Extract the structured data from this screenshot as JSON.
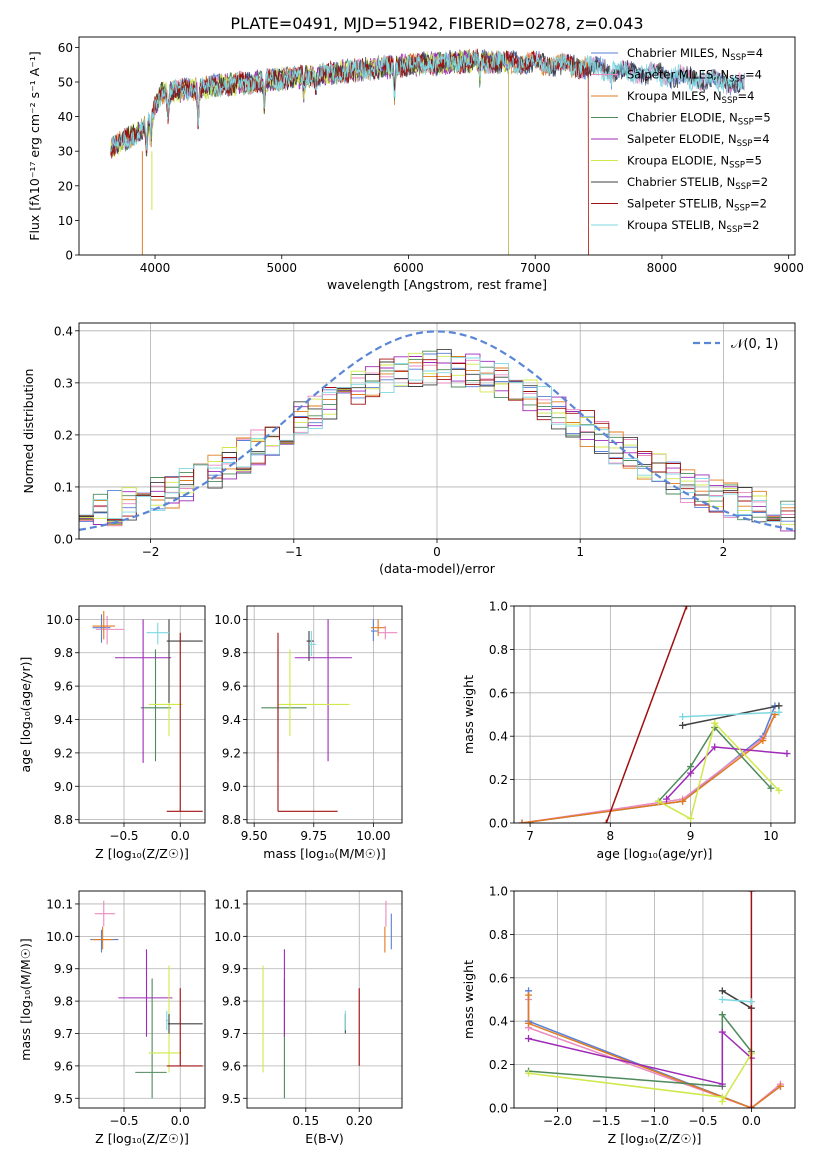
{
  "figure": {
    "title": "PLATE=0491, MJD=51942, FIBERID=0278, z=0.043"
  },
  "colors": {
    "chabrier_miles": "#5a7fd6",
    "salpeter_miles": "#e98ac0",
    "kroupa_miles": "#e07b1f",
    "chabrier_elodie": "#4f8a5b",
    "salpeter_elodie": "#9e2ab8",
    "kroupa_elodie": "#d0e84a",
    "chabrier_stelib": "#404040",
    "salpeter_stelib": "#a01010",
    "kroupa_stelib": "#7fd8e0"
  },
  "chart_data": [
    {
      "id": "spectrum",
      "type": "line",
      "xlabel": "wavelength [Angstrom, rest frame]",
      "ylabel": "Flux [fλ10⁻¹⁷ erg cm⁻² s⁻¹ A⁻¹]",
      "xlim": [
        3400,
        9050
      ],
      "ylim": [
        0,
        63
      ],
      "xticks": [
        4000,
        5000,
        6000,
        7000,
        8000,
        9000
      ],
      "yticks": [
        0,
        10,
        20,
        30,
        40,
        50,
        60
      ],
      "legend": "upper-right",
      "continuum": {
        "x": [
          3650,
          3800,
          3950,
          4050,
          4300,
          4500,
          4800,
          5000,
          5500,
          6000,
          6500,
          7000,
          7500,
          8000,
          8500,
          8650
        ],
        "y": [
          31,
          34,
          38,
          47,
          48,
          49,
          50,
          51,
          53,
          55,
          56,
          55.5,
          54,
          52,
          50,
          49
        ]
      },
      "series": [
        {
          "name": "Chabrier MILES, N_SSP=4",
          "color_key": "chabrier_miles",
          "end": 8650
        },
        {
          "name": "Salpeter MILES, N_SSP=4",
          "color_key": "salpeter_miles",
          "end": 8650
        },
        {
          "name": "Kroupa MILES, N_SSP=4",
          "color_key": "kroupa_miles",
          "end": 7420
        },
        {
          "name": "Chabrier ELODIE, N_SSP=5",
          "color_key": "chabrier_elodie",
          "end": 6790
        },
        {
          "name": "Salpeter ELODIE, N_SSP=4",
          "color_key": "salpeter_elodie",
          "end": 6790
        },
        {
          "name": "Kroupa ELODIE, N_SSP=5",
          "color_key": "kroupa_elodie",
          "end": 6790
        },
        {
          "name": "Chabrier STELIB, N_SSP=2",
          "color_key": "chabrier_stelib",
          "end": 8650
        },
        {
          "name": "Salpeter STELIB, N_SSP=2",
          "color_key": "salpeter_stelib",
          "end": 7420
        },
        {
          "name": "Kroupa STELIB, N_SSP=2",
          "color_key": "kroupa_stelib",
          "end": 8650
        }
      ]
    },
    {
      "id": "residuals",
      "type": "histogram",
      "xlabel": "(data-model)/error",
      "ylabel": "Normed distribution",
      "xlim": [
        -2.5,
        2.5
      ],
      "ylim": [
        0,
        0.415
      ],
      "xticks": [
        -2,
        -1,
        0,
        1,
        2
      ],
      "yticks": [
        0.0,
        0.1,
        0.2,
        0.3,
        0.4
      ],
      "legend": "upper-right",
      "gaussian": {
        "label": "𝒩(0, 1)",
        "color": "#5a86d6"
      },
      "bin_width": 0.1,
      "series_order": [
        "chabrier_miles",
        "salpeter_miles",
        "kroupa_miles",
        "chabrier_elodie",
        "salpeter_elodie",
        "kroupa_elodie",
        "chabrier_stelib",
        "salpeter_stelib",
        "kroupa_stelib"
      ]
    },
    {
      "id": "age_vs_z",
      "type": "errorbar",
      "xlabel": "Z [log₁₀(Z/Z☉)]",
      "ylabel": "age  [log₁₀(age/yr)]",
      "xlim": [
        -0.9,
        0.22
      ],
      "ylim": [
        8.78,
        10.08
      ],
      "xticks": [
        -0.5,
        0.0
      ],
      "yticks": [
        8.8,
        9.0,
        9.2,
        9.4,
        9.6,
        9.8,
        10.0
      ],
      "points": [
        {
          "k": "chabrier_miles",
          "x": -0.7,
          "xe": [
            -0.78,
            -0.62
          ],
          "y": 9.95,
          "ye": [
            9.86,
            10.03
          ]
        },
        {
          "k": "salpeter_miles",
          "x": -0.65,
          "xe": [
            -0.75,
            -0.5
          ],
          "y": 9.94,
          "ye": [
            9.85,
            10.02
          ]
        },
        {
          "k": "kroupa_miles",
          "x": -0.68,
          "xe": [
            -0.78,
            -0.58
          ],
          "y": 9.96,
          "ye": [
            9.88,
            10.05
          ]
        },
        {
          "k": "chabrier_elodie",
          "x": -0.22,
          "xe": [
            -0.35,
            -0.08
          ],
          "y": 9.47,
          "ye": [
            9.15,
            9.82
          ]
        },
        {
          "k": "salpeter_elodie",
          "x": -0.33,
          "xe": [
            -0.58,
            -0.08
          ],
          "y": 9.77,
          "ye": [
            9.14,
            10.0
          ]
        },
        {
          "k": "kroupa_elodie",
          "x": -0.1,
          "xe": [
            -0.28,
            0.02
          ],
          "y": 9.49,
          "ye": [
            9.3,
            9.82
          ]
        },
        {
          "k": "chabrier_stelib",
          "x": -0.1,
          "xe": [
            -0.12,
            0.2
          ],
          "y": 9.87,
          "ye": [
            9.5,
            10.0
          ]
        },
        {
          "k": "salpeter_stelib",
          "x": 0.0,
          "xe": [
            -0.12,
            0.2
          ],
          "y": 8.85,
          "ye": [
            8.85,
            9.92
          ]
        },
        {
          "k": "kroupa_stelib",
          "x": -0.2,
          "xe": [
            -0.3,
            -0.1
          ],
          "y": 9.92,
          "ye": [
            9.85,
            9.98
          ]
        }
      ]
    },
    {
      "id": "age_vs_mass",
      "type": "errorbar",
      "xlabel": "mass [log₁₀(M/M☉)]",
      "ylabel": "",
      "xlim": [
        9.47,
        10.12
      ],
      "ylim": [
        8.78,
        10.08
      ],
      "xticks": [
        9.5,
        9.75,
        10.0
      ],
      "yticks": [
        8.8,
        9.0,
        9.2,
        9.4,
        9.6,
        9.8,
        10.0
      ],
      "points": [
        {
          "k": "chabrier_miles",
          "x": 10.0,
          "xe": [
            9.99,
            10.02
          ],
          "y": 9.93,
          "ye": [
            9.87,
            10.0
          ]
        },
        {
          "k": "salpeter_miles",
          "x": 10.05,
          "xe": [
            10.02,
            10.1
          ],
          "y": 9.92,
          "ye": [
            9.88,
            9.96
          ]
        },
        {
          "k": "kroupa_miles",
          "x": 10.02,
          "xe": [
            9.99,
            10.05
          ],
          "y": 9.95,
          "ye": [
            9.9,
            10.0
          ]
        },
        {
          "k": "chabrier_elodie",
          "x": 9.6,
          "xe": [
            9.53,
            9.72
          ],
          "y": 9.47,
          "ye": [
            9.15,
            9.82
          ]
        },
        {
          "k": "salpeter_elodie",
          "x": 9.81,
          "xe": [
            9.67,
            9.91
          ],
          "y": 9.77,
          "ye": [
            9.15,
            10.0
          ]
        },
        {
          "k": "kroupa_elodie",
          "x": 9.65,
          "xe": [
            9.6,
            9.9
          ],
          "y": 9.49,
          "ye": [
            9.3,
            9.82
          ]
        },
        {
          "k": "chabrier_stelib",
          "x": 9.73,
          "xe": [
            9.72,
            9.75
          ],
          "y": 9.87,
          "ye": [
            9.75,
            9.93
          ]
        },
        {
          "k": "salpeter_stelib",
          "x": 9.6,
          "xe": [
            9.6,
            9.85
          ],
          "y": 8.85,
          "ye": [
            8.85,
            9.92
          ]
        },
        {
          "k": "kroupa_stelib",
          "x": 9.74,
          "xe": [
            9.73,
            9.76
          ],
          "y": 9.85,
          "ye": [
            9.78,
            9.93
          ]
        }
      ]
    },
    {
      "id": "weight_vs_age",
      "type": "line",
      "xlabel": "age  [log₁₀(age/yr)]",
      "ylabel": "mass weight",
      "xlim": [
        6.8,
        10.3
      ],
      "ylim": [
        0,
        1.0
      ],
      "xticks": [
        7,
        8,
        9,
        10
      ],
      "yticks": [
        0.0,
        0.2,
        0.4,
        0.6,
        0.8,
        1.0
      ],
      "series": [
        {
          "k": "chabrier_miles",
          "x": [
            6.9,
            8.9,
            9.9,
            10.05
          ],
          "y": [
            0.0,
            0.1,
            0.4,
            0.54
          ]
        },
        {
          "k": "salpeter_miles",
          "x": [
            6.9,
            8.9,
            9.9,
            10.05
          ],
          "y": [
            0.0,
            0.11,
            0.39,
            0.5
          ]
        },
        {
          "k": "kroupa_miles",
          "x": [
            6.9,
            8.9,
            9.9,
            10.05
          ],
          "y": [
            0.0,
            0.1,
            0.38,
            0.5
          ]
        },
        {
          "k": "chabrier_elodie",
          "x": [
            8.6,
            9.0,
            9.3,
            10.0
          ],
          "y": [
            0.1,
            0.26,
            0.44,
            0.16
          ]
        },
        {
          "k": "salpeter_elodie",
          "x": [
            8.7,
            9.0,
            9.3,
            10.2
          ],
          "y": [
            0.11,
            0.23,
            0.35,
            0.32
          ]
        },
        {
          "k": "kroupa_elodie",
          "x": [
            8.6,
            9.0,
            9.3,
            10.1
          ],
          "y": [
            0.1,
            0.02,
            0.46,
            0.15
          ]
        },
        {
          "k": "chabrier_stelib",
          "x": [
            8.9,
            10.1
          ],
          "y": [
            0.45,
            0.54
          ]
        },
        {
          "k": "salpeter_stelib",
          "x": [
            7.95,
            8.95
          ],
          "y": [
            0.0,
            1.0
          ]
        },
        {
          "k": "kroupa_stelib",
          "x": [
            8.9,
            10.1
          ],
          "y": [
            0.49,
            0.51
          ]
        }
      ]
    },
    {
      "id": "mass_vs_z",
      "type": "errorbar",
      "xlabel": "Z [log₁₀(Z/Z☉)]",
      "ylabel": "mass [log₁₀(M/M☉)]",
      "xlim": [
        -0.9,
        0.22
      ],
      "ylim": [
        9.47,
        10.14
      ],
      "xticks": [
        -0.5,
        0.0
      ],
      "yticks": [
        9.5,
        9.6,
        9.7,
        9.8,
        9.9,
        10.0,
        10.1
      ],
      "points": [
        {
          "k": "chabrier_miles",
          "x": -0.7,
          "xe": [
            -0.8,
            -0.55
          ],
          "y": 9.99,
          "ye": [
            9.95,
            10.02
          ]
        },
        {
          "k": "salpeter_miles",
          "x": -0.68,
          "xe": [
            -0.76,
            -0.58
          ],
          "y": 10.07,
          "ye": [
            10.03,
            10.11
          ]
        },
        {
          "k": "kroupa_miles",
          "x": -0.69,
          "xe": [
            -0.78,
            -0.6
          ],
          "y": 9.99,
          "ye": [
            9.96,
            10.03
          ]
        },
        {
          "k": "chabrier_elodie",
          "x": -0.25,
          "xe": [
            -0.4,
            -0.12
          ],
          "y": 9.58,
          "ye": [
            9.5,
            9.87
          ]
        },
        {
          "k": "salpeter_elodie",
          "x": -0.3,
          "xe": [
            -0.55,
            -0.07
          ],
          "y": 9.81,
          "ye": [
            9.69,
            9.96
          ]
        },
        {
          "k": "kroupa_elodie",
          "x": -0.1,
          "xe": [
            -0.28,
            0.01
          ],
          "y": 9.64,
          "ye": [
            9.58,
            9.91
          ]
        },
        {
          "k": "chabrier_stelib",
          "x": -0.1,
          "xe": [
            -0.11,
            0.2
          ],
          "y": 9.73,
          "ye": [
            9.7,
            9.76
          ]
        },
        {
          "k": "salpeter_stelib",
          "x": 0.0,
          "xe": [
            -0.12,
            0.2
          ],
          "y": 9.6,
          "ye": [
            9.6,
            9.84
          ]
        },
        {
          "k": "kroupa_stelib",
          "x": -0.12,
          "xe": [
            -0.13,
            -0.11
          ],
          "y": 9.74,
          "ye": [
            9.71,
            9.77
          ]
        }
      ]
    },
    {
      "id": "mass_vs_ebv",
      "type": "errorbar",
      "xlabel": "E(B-V)",
      "ylabel": "",
      "xlim": [
        0.095,
        0.24
      ],
      "ylim": [
        9.47,
        10.14
      ],
      "xticks": [
        0.15,
        0.2
      ],
      "yticks": [
        9.5,
        9.6,
        9.7,
        9.8,
        9.9,
        10.0,
        10.1
      ],
      "points": [
        {
          "k": "chabrier_miles",
          "x": 0.23,
          "y": 10.02,
          "ye": [
            9.96,
            10.07
          ]
        },
        {
          "k": "salpeter_miles",
          "x": 0.225,
          "y": 10.07,
          "ye": [
            10.03,
            10.11
          ]
        },
        {
          "k": "kroupa_miles",
          "x": 0.224,
          "y": 9.99,
          "ye": [
            9.95,
            10.03
          ]
        },
        {
          "k": "chabrier_elodie",
          "x": 0.13,
          "y": 9.58,
          "ye": [
            9.5,
            9.87
          ]
        },
        {
          "k": "salpeter_elodie",
          "x": 0.13,
          "y": 9.81,
          "ye": [
            9.69,
            9.96
          ]
        },
        {
          "k": "kroupa_elodie",
          "x": 0.11,
          "y": 9.64,
          "ye": [
            9.58,
            9.91
          ]
        },
        {
          "k": "chabrier_stelib",
          "x": 0.187,
          "y": 9.73,
          "ye": [
            9.7,
            9.76
          ]
        },
        {
          "k": "salpeter_stelib",
          "x": 0.2,
          "y": 9.6,
          "ye": [
            9.6,
            9.84
          ]
        },
        {
          "k": "kroupa_stelib",
          "x": 0.187,
          "y": 9.74,
          "ye": [
            9.71,
            9.77
          ]
        }
      ]
    },
    {
      "id": "weight_vs_z",
      "type": "line",
      "xlabel": "Z [log₁₀(Z/Z☉)]",
      "ylabel": "mass weight",
      "xlim": [
        -2.45,
        0.45
      ],
      "ylim": [
        0,
        1.0
      ],
      "xticks": [
        -2.0,
        -1.5,
        -1.0,
        -0.5,
        0.0
      ],
      "yticks": [
        0.0,
        0.2,
        0.4,
        0.6,
        0.8,
        1.0
      ],
      "series": [
        {
          "k": "chabrier_miles",
          "x": [
            -2.3,
            -2.3,
            0.0,
            0.3
          ],
          "y": [
            0.54,
            0.4,
            0.0,
            0.1
          ]
        },
        {
          "k": "salpeter_miles",
          "x": [
            -2.3,
            -2.3,
            0.0,
            0.3
          ],
          "y": [
            0.5,
            0.37,
            0.0,
            0.11
          ]
        },
        {
          "k": "kroupa_miles",
          "x": [
            -2.3,
            -2.3,
            0.0,
            0.3
          ],
          "y": [
            0.52,
            0.39,
            0.0,
            0.1
          ]
        },
        {
          "k": "chabrier_elodie",
          "x": [
            -2.3,
            -0.3,
            -0.3,
            0.0
          ],
          "y": [
            0.17,
            0.1,
            0.43,
            0.26
          ]
        },
        {
          "k": "salpeter_elodie",
          "x": [
            -2.3,
            -0.3,
            -0.3,
            0.0
          ],
          "y": [
            0.32,
            0.11,
            0.35,
            0.23
          ]
        },
        {
          "k": "kroupa_elodie",
          "x": [
            -2.3,
            -0.3,
            -0.3,
            0.0
          ],
          "y": [
            0.16,
            0.05,
            0.03,
            0.25
          ]
        },
        {
          "k": "chabrier_stelib",
          "x": [
            -0.3,
            0.0
          ],
          "y": [
            0.54,
            0.46
          ]
        },
        {
          "k": "salpeter_stelib",
          "x": [
            0.0,
            0.0
          ],
          "y": [
            0.0,
            1.0
          ]
        },
        {
          "k": "kroupa_stelib",
          "x": [
            -0.3,
            0.0
          ],
          "y": [
            0.5,
            0.49
          ]
        }
      ]
    }
  ]
}
